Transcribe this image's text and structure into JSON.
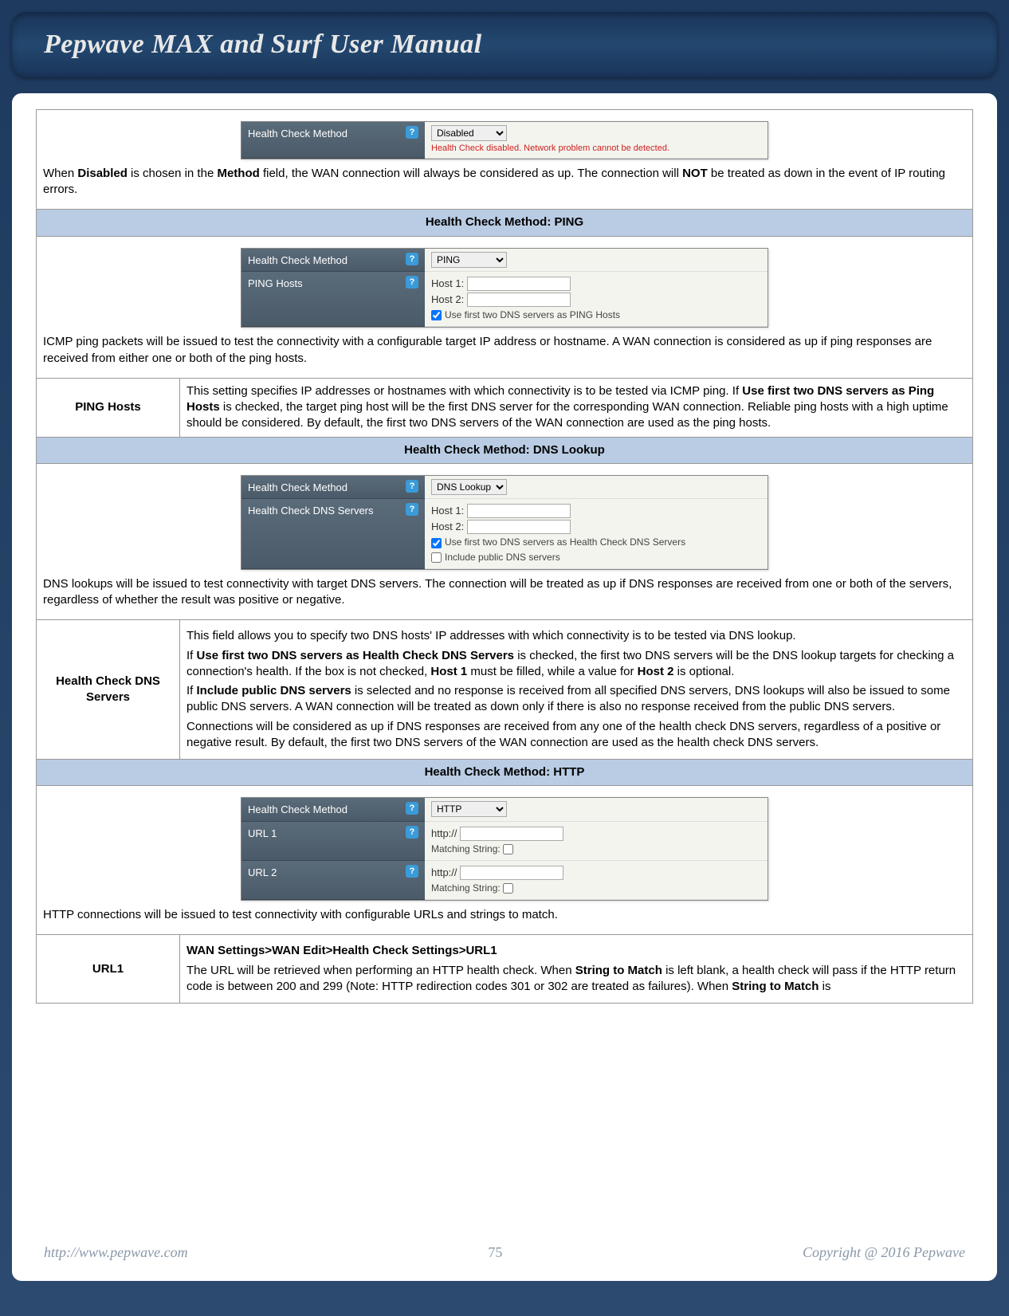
{
  "title": "Pepwave MAX and Surf User Manual",
  "footer": {
    "url": "http://www.pepwave.com",
    "page": "75",
    "copyright": "Copyright @ 2016 Pepwave"
  },
  "colors": {
    "section_bg": "#b9cce3",
    "ui_label_bg": "#4a5a68",
    "warn": "#cc2222"
  },
  "sec_disabled": {
    "ui_label": "Health Check Method",
    "select": "Disabled",
    "warn": "Health Check disabled. Network problem cannot be detected.",
    "note_a": "When ",
    "note_b": "Disabled",
    "note_c": " is chosen in the ",
    "note_d": "Method",
    "note_e": " field, the WAN connection will always be considered as up. The connection will ",
    "note_f": "NOT",
    "note_g": " be treated as down in the event of IP routing errors."
  },
  "sec_ping": {
    "header": "Health Check Method: PING",
    "ui_method_label": "Health Check Method",
    "ui_method_select": "PING",
    "ui_hosts_label": "PING Hosts",
    "host1": "Host 1:",
    "host2": "Host 2:",
    "chk": "Use first two DNS servers as PING Hosts",
    "note": "ICMP ping packets will be issued to test the connectivity with a configurable target IP address or hostname. A WAN connection is considered as up if ping responses are received from either one or both of the ping hosts.",
    "row_label": "PING Hosts",
    "row_a": "This setting specifies IP addresses or hostnames with which connectivity is to be tested via ICMP ping. If ",
    "row_b": "Use first two DNS servers as Ping Hosts",
    "row_c": " is checked, the target ping host will be the first DNS server for the corresponding WAN connection. Reliable ping hosts with a high uptime should be considered. By default, the first two DNS servers of the WAN connection are used as the ping hosts."
  },
  "sec_dns": {
    "header": "Health Check Method: DNS Lookup",
    "ui_method_label": "Health Check Method",
    "ui_method_select": "DNS Lookup",
    "ui_servers_label": "Health Check DNS Servers",
    "host1": "Host 1:",
    "host2": "Host 2:",
    "chk1": "Use first two DNS servers as Health Check DNS Servers",
    "chk2": "Include public DNS servers",
    "note": "DNS lookups will be issued to test connectivity with target DNS servers. The connection will be treated as up if DNS responses are received from one or both of the servers, regardless of whether the result was positive or negative.",
    "row_label": "Health Check DNS Servers",
    "p1": "This field allows you to specify two DNS hosts' IP addresses with which connectivity is to be tested via DNS lookup.",
    "p2a": "If ",
    "p2b": "Use first two DNS servers as Health Check DNS Servers",
    "p2c": " is checked, the first two DNS servers will be the DNS lookup targets for checking a connection's health. If the box is not checked, ",
    "p2d": "Host 1",
    "p2e": " must be filled, while a value for ",
    "p2f": "Host 2",
    "p2g": " is optional.",
    "p3a": "If ",
    "p3b": "Include public DNS servers",
    "p3c": " is selected and no response is received from all specified DNS servers, DNS lookups will also be issued to some public DNS servers. A WAN connection will be treated as down only if there is also no response received from the public DNS servers.",
    "p4": "Connections will be considered as up if DNS responses are received from any one of the health check DNS servers, regardless of a positive or negative result. By default, the first two DNS servers of the WAN connection are used as the health check DNS servers."
  },
  "sec_http": {
    "header": "Health Check Method: HTTP",
    "ui_method_label": "Health Check Method",
    "ui_method_select": "HTTP",
    "url1_label": "URL 1",
    "url2_label": "URL 2",
    "http_prefix": "http://",
    "match_label": "Matching String:",
    "note": "HTTP connections will be issued to test connectivity with configurable URLs and strings to match.",
    "row_label": "URL1",
    "p1": "WAN Settings>WAN Edit>Health Check Settings>URL1",
    "p2a": "The URL will be retrieved when performing an HTTP health check. When ",
    "p2b": "String to Match",
    "p2c": " is left blank, a health check will pass if the HTTP return code is between 200 and 299 (Note: HTTP redirection codes 301 or 302 are treated as failures). When ",
    "p2d": "String to Match",
    "p2e": " is"
  }
}
